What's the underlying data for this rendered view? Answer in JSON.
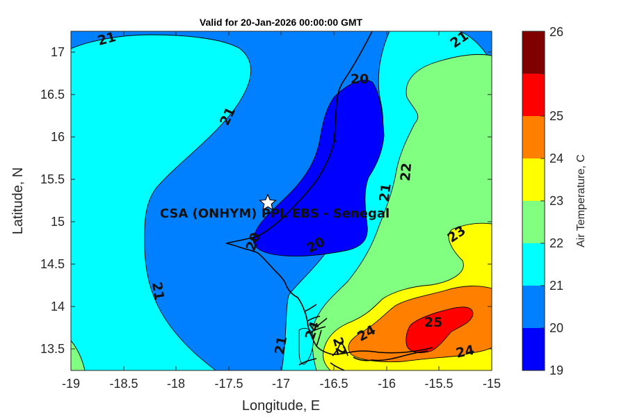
{
  "title": "Valid for 20-Jan-2026 00:00:00 GMT",
  "xlabel": "Longitude, E",
  "ylabel": "Latitude, N",
  "x_ticks": [
    "-19",
    "-18.5",
    "-18",
    "-17.5",
    "-17",
    "-16.5",
    "-16",
    "-15.5",
    "-15"
  ],
  "y_ticks": [
    "13.5",
    "14",
    "14.5",
    "15",
    "15.5",
    "16",
    "16.5",
    "17"
  ],
  "site_label": "CSA (ONHYM) PPL EBS  - Senegal",
  "colorbar": {
    "label": "Air Temperature, C",
    "ticks": [
      "19",
      "20",
      "21",
      "22",
      "23",
      "24",
      "25",
      "26"
    ],
    "colors": [
      "#0000ff",
      "#0080ff",
      "#00ffff",
      "#80ff80",
      "#ffff00",
      "#ff8000",
      "#ff0000",
      "#800000"
    ]
  },
  "contour_labels": [
    "21",
    "20",
    "21",
    "22",
    "21",
    "23",
    "21",
    "20",
    "20",
    "21",
    "21",
    "24",
    "22",
    "25",
    "24",
    "24",
    "21"
  ],
  "chart_data": {
    "type": "heatmap",
    "title": "Valid for 20-Jan-2026 00:00:00 GMT",
    "xlabel": "Longitude, E",
    "ylabel": "Latitude, N",
    "xlim": [
      -19,
      -15
    ],
    "ylim": [
      13.25,
      17.25
    ],
    "zlim": [
      19,
      26
    ],
    "zlabel": "Air Temperature, C",
    "levels": [
      19,
      20,
      21,
      22,
      23,
      24,
      25,
      26
    ],
    "grid": false,
    "colorbar": "right",
    "site": {
      "name": "CSA (ONHYM) PPL EBS  - Senegal",
      "lon": -17.12,
      "lat": 15.23
    }
  }
}
